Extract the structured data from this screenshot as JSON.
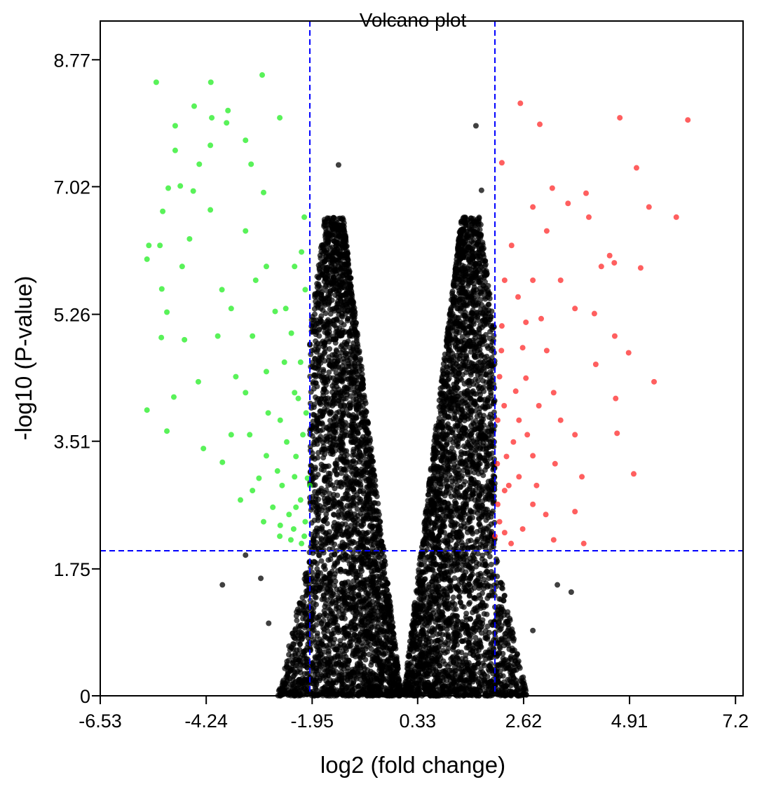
{
  "chart_data": {
    "type": "scatter",
    "title": "Volcano plot",
    "xlabel": "log2 (fold change)",
    "ylabel": "-log10 (P-value)",
    "xlim": [
      -6.53,
      7.36
    ],
    "ylim": [
      0,
      9.3
    ],
    "x_ticks": [
      "-6.53",
      "-4.24",
      "-1.95",
      "0.33",
      "2.62",
      "4.91",
      "7.2"
    ],
    "y_ticks": [
      "0",
      "1.75",
      "3.51",
      "5.26",
      "7.02",
      "8.77"
    ],
    "grid": false,
    "thresholds": {
      "log2_fold_change": [
        -2,
        2
      ],
      "neg_log10_p": 2,
      "line_color": "#0000ff",
      "line_style": "dashed"
    },
    "colors": {
      "down": "#22ee22",
      "up": "#ff2a2a",
      "not_significant": "#000000"
    },
    "series": [
      {
        "group": "down",
        "points": [
          [
            -5.32,
            8.46
          ],
          [
            -4.14,
            8.46
          ],
          [
            -3.03,
            8.56
          ],
          [
            -4.5,
            8.13
          ],
          [
            -3.77,
            8.07
          ],
          [
            -2.65,
            7.97
          ],
          [
            -4.91,
            7.86
          ],
          [
            -4.12,
            7.97
          ],
          [
            -3.8,
            7.9
          ],
          [
            -3.39,
            7.66
          ],
          [
            -4.15,
            7.59
          ],
          [
            -4.91,
            7.52
          ],
          [
            -4.39,
            7.33
          ],
          [
            -3.27,
            7.33
          ],
          [
            -5.06,
            7.0
          ],
          [
            -4.8,
            7.03
          ],
          [
            -4.52,
            6.96
          ],
          [
            -3.0,
            6.94
          ],
          [
            -5.18,
            6.68
          ],
          [
            -5.52,
            6.02
          ],
          [
            -5.48,
            6.21
          ],
          [
            -5.24,
            6.21
          ],
          [
            -5.2,
            5.61
          ],
          [
            -5.09,
            5.29
          ],
          [
            -5.21,
            4.94
          ],
          [
            -5.52,
            3.94
          ],
          [
            -4.94,
            4.12
          ],
          [
            -5.09,
            3.65
          ],
          [
            -4.71,
            4.91
          ],
          [
            -4.41,
            4.33
          ],
          [
            -4.3,
            3.41
          ],
          [
            -3.89,
            3.22
          ],
          [
            -3.7,
            5.34
          ],
          [
            -3.17,
            5.73
          ],
          [
            -2.94,
            5.92
          ],
          [
            -2.33,
            5.92
          ],
          [
            -2.18,
            6.12
          ],
          [
            -2.12,
            6.6
          ],
          [
            -2.52,
            5.34
          ],
          [
            -3.24,
            2.83
          ],
          [
            -3.7,
            3.6
          ],
          [
            -2.64,
            2.35
          ],
          [
            -2.41,
            2.15
          ],
          [
            -2.18,
            2.1
          ],
          [
            -2.94,
            4.47
          ],
          [
            -2.33,
            4.18
          ],
          [
            -2.64,
            3.8
          ],
          [
            -3.39,
            6.41
          ],
          [
            -4.15,
            6.7
          ],
          [
            -4.76,
            5.92
          ],
          [
            -3.99,
            4.96
          ],
          [
            -3.39,
            4.18
          ],
          [
            -2.94,
            3.31
          ],
          [
            -2.33,
            3.02
          ],
          [
            -3.24,
            4.96
          ],
          [
            -2.1,
            2.4
          ],
          [
            -2.2,
            2.7
          ],
          [
            -2.05,
            3.0
          ],
          [
            -2.3,
            3.3
          ],
          [
            -2.15,
            3.6
          ],
          [
            -2.45,
            2.5
          ],
          [
            -2.6,
            2.9
          ],
          [
            -2.08,
            3.9
          ],
          [
            -2.25,
            4.1
          ],
          [
            -2.5,
            3.5
          ],
          [
            -2.8,
            2.6
          ],
          [
            -2.35,
            2.3
          ],
          [
            -2.12,
            2.2
          ],
          [
            -2.7,
            3.1
          ],
          [
            -3.0,
            2.4
          ],
          [
            -2.55,
            4.6
          ],
          [
            -2.9,
            3.9
          ],
          [
            -3.1,
            3.0
          ],
          [
            -3.5,
            2.7
          ],
          [
            -2.2,
            4.6
          ],
          [
            -2.4,
            5.0
          ],
          [
            -2.75,
            5.3
          ],
          [
            -3.6,
            4.4
          ],
          [
            -3.9,
            5.6
          ],
          [
            -4.6,
            6.3
          ],
          [
            -2.1,
            5.6
          ],
          [
            -3.3,
            3.6
          ],
          [
            -2.0,
            2.9
          ],
          [
            -2.3,
            2.6
          ],
          [
            -2.65,
            2.2
          ]
        ]
      },
      {
        "group": "up",
        "points": [
          [
            2.55,
            8.17
          ],
          [
            2.97,
            7.88
          ],
          [
            4.7,
            7.97
          ],
          [
            6.17,
            7.94
          ],
          [
            2.15,
            7.35
          ],
          [
            5.06,
            7.28
          ],
          [
            3.24,
            7.0
          ],
          [
            3.97,
            6.93
          ],
          [
            5.33,
            6.74
          ],
          [
            5.92,
            6.6
          ],
          [
            3.58,
            6.79
          ],
          [
            2.82,
            6.74
          ],
          [
            4.48,
            6.07
          ],
          [
            4.58,
            5.97
          ],
          [
            5.15,
            5.9
          ],
          [
            4.3,
            5.92
          ],
          [
            4.15,
            5.27
          ],
          [
            4.59,
            4.96
          ],
          [
            4.89,
            4.73
          ],
          [
            5.44,
            4.33
          ],
          [
            4.61,
            4.1
          ],
          [
            4.64,
            3.62
          ],
          [
            5.0,
            3.06
          ],
          [
            3.88,
            3.02
          ],
          [
            3.73,
            2.54
          ],
          [
            3.92,
            2.1
          ],
          [
            3.27,
            2.15
          ],
          [
            2.82,
            2.64
          ],
          [
            2.21,
            2.83
          ],
          [
            2.52,
            3.8
          ],
          [
            3.12,
            4.76
          ],
          [
            2.21,
            5.73
          ],
          [
            2.36,
            6.21
          ],
          [
            3.42,
            5.73
          ],
          [
            3.73,
            5.34
          ],
          [
            2.67,
            5.15
          ],
          [
            2.06,
            3.8
          ],
          [
            2.82,
            3.31
          ],
          [
            3.42,
            3.8
          ],
          [
            2.14,
            4.76
          ],
          [
            3.12,
            6.41
          ],
          [
            4.03,
            6.6
          ],
          [
            2.82,
            5.73
          ],
          [
            2.21,
            2.25
          ],
          [
            2.67,
            4.38
          ],
          [
            3.27,
            4.18
          ],
          [
            4.18,
            4.57
          ],
          [
            3.73,
            3.6
          ],
          [
            2.52,
            3.02
          ],
          [
            2.06,
            2.64
          ],
          [
            2.1,
            2.4
          ],
          [
            2.3,
            2.9
          ],
          [
            2.05,
            3.2
          ],
          [
            2.4,
            3.5
          ],
          [
            2.2,
            4.0
          ],
          [
            2.6,
            2.3
          ],
          [
            2.7,
            3.6
          ],
          [
            2.1,
            4.4
          ],
          [
            2.45,
            4.2
          ],
          [
            2.9,
            2.9
          ],
          [
            3.1,
            2.5
          ],
          [
            2.35,
            2.1
          ],
          [
            2.15,
            5.1
          ],
          [
            2.5,
            5.5
          ],
          [
            2.95,
            4.0
          ],
          [
            3.3,
            3.2
          ],
          [
            2.25,
            3.3
          ],
          [
            2.6,
            4.8
          ],
          [
            3.0,
            5.2
          ],
          [
            2.0,
            2.2
          ]
        ]
      },
      {
        "group": "not_significant_outliers",
        "points": [
          [
            1.59,
            7.86
          ],
          [
            -1.38,
            7.32
          ],
          [
            1.71,
            6.97
          ],
          [
            -3.89,
            1.53
          ],
          [
            3.65,
            1.43
          ],
          [
            -3.39,
            1.94
          ],
          [
            -3.06,
            1.62
          ],
          [
            3.35,
            1.53
          ],
          [
            -2.89,
            1.0
          ],
          [
            -2.08,
            0.51
          ],
          [
            2.82,
            0.9
          ]
        ]
      }
    ]
  }
}
